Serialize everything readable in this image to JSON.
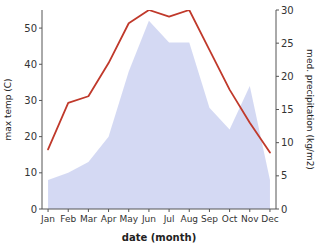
{
  "chart_data": {
    "type": "area",
    "xlabel": "date (month)",
    "ylabel": "max temp (C)",
    "y2label": "med. precipitation (kg/m2)",
    "categories": [
      "Jan",
      "Feb",
      "Mar",
      "Apr",
      "May",
      "Jun",
      "Jul",
      "Aug",
      "Sep",
      "Oct",
      "Nov",
      "Dec"
    ],
    "series": [
      {
        "type": "area",
        "color": "#aab4e8",
        "values": [
          8,
          10,
          13,
          20,
          38,
          52,
          46,
          46,
          28,
          22,
          34,
          8
        ]
      },
      {
        "type": "line",
        "color": "#c0392b",
        "axis": "y2",
        "values": [
          9,
          16,
          17,
          22,
          28,
          30,
          29,
          30,
          24,
          18,
          13,
          8.5
        ]
      }
    ],
    "ylim": [
      0,
      55
    ],
    "yticks": [
      0,
      10,
      20,
      30,
      40,
      50
    ],
    "y2lim": [
      0,
      30
    ],
    "y2ticks": [
      0,
      5,
      10,
      15,
      20,
      25,
      30
    ],
    "grid": false
  }
}
